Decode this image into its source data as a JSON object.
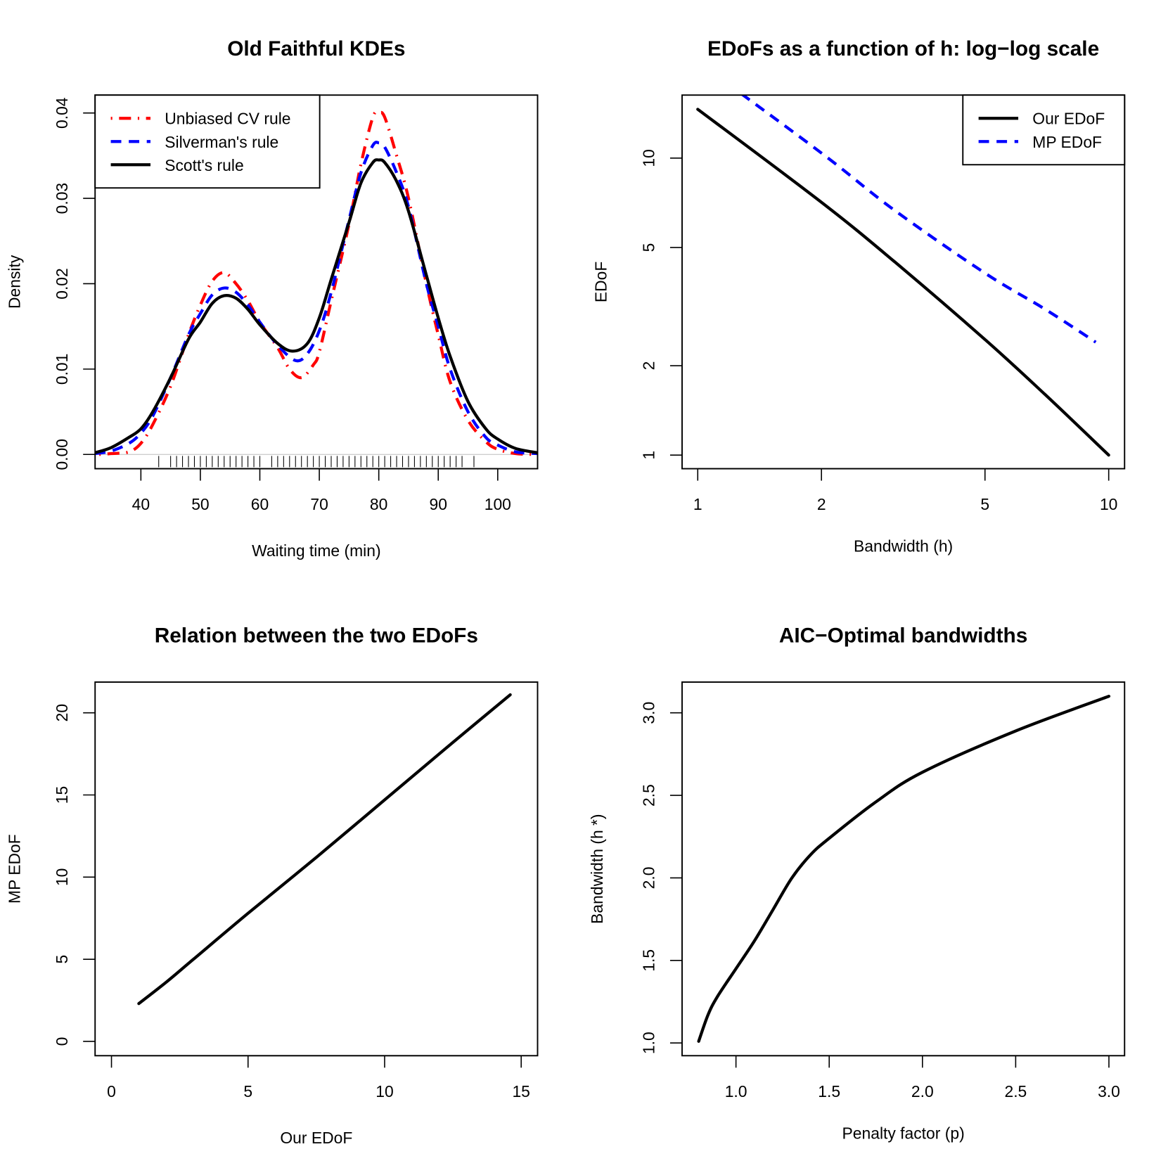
{
  "chart_data": [
    {
      "type": "line",
      "title": "Old Faithful KDEs",
      "xlabel": "Waiting time (min)",
      "ylabel": "Density",
      "xlim": [
        32.3,
        106.7
      ],
      "ylim": [
        -0.00167,
        0.0421
      ],
      "xscale": "linear",
      "yscale": "linear",
      "xticks": [
        40,
        50,
        60,
        70,
        80,
        90,
        100
      ],
      "xtick_labels": [
        "40",
        "50",
        "60",
        "70",
        "80",
        "90",
        "100"
      ],
      "yticks": [
        0,
        0.01,
        0.02,
        0.03,
        0.04
      ],
      "ytick_labels": [
        "0.00",
        "0.01",
        "0.02",
        "0.03",
        "0.04"
      ],
      "grid": false,
      "zero_line": true,
      "legend": "top-left",
      "rug": [
        43,
        45,
        46,
        47,
        48,
        49,
        50,
        51,
        52,
        53,
        54,
        55,
        56,
        57,
        58,
        59,
        60,
        62,
        63,
        64,
        65,
        66,
        67,
        68,
        69,
        70,
        71,
        72,
        73,
        74,
        75,
        76,
        77,
        78,
        79,
        80,
        81,
        82,
        83,
        84,
        85,
        86,
        87,
        88,
        89,
        90,
        91,
        92,
        93,
        94,
        96
      ],
      "series": [
        {
          "name": "Unbiased CV rule",
          "color": "#ff0000",
          "style": "dotdash",
          "x": [
            33,
            35,
            38,
            40,
            42,
            45,
            48,
            50,
            52,
            54,
            56,
            58,
            60,
            63,
            65,
            67,
            69,
            70,
            72,
            75,
            77,
            79,
            80,
            81,
            83,
            85,
            88,
            90,
            92,
            95,
            98,
            100,
            103,
            106.7
          ],
          "y": [
            0.0,
            0.0001,
            0.0003,
            0.0013,
            0.0035,
            0.008,
            0.014,
            0.0175,
            0.0203,
            0.0213,
            0.02,
            0.018,
            0.0155,
            0.0125,
            0.01,
            0.009,
            0.0105,
            0.012,
            0.018,
            0.027,
            0.034,
            0.0395,
            0.04,
            0.0395,
            0.035,
            0.03,
            0.02,
            0.014,
            0.0085,
            0.004,
            0.0015,
            0.0006,
            0.0001,
            0.0
          ]
        },
        {
          "name": "Silverman's rule",
          "color": "#0000ff",
          "style": "dashed",
          "x": [
            32.3,
            35,
            38,
            40,
            42,
            45,
            48,
            50,
            52,
            54,
            56,
            58,
            60,
            63,
            66,
            68,
            70,
            72,
            75,
            77,
            79,
            80,
            81,
            83,
            85,
            88,
            90,
            92,
            95,
            98,
            100,
            103,
            106.7
          ],
          "y": [
            0.0001,
            0.0004,
            0.0013,
            0.0025,
            0.0045,
            0.009,
            0.014,
            0.0165,
            0.0187,
            0.0195,
            0.019,
            0.0175,
            0.0155,
            0.0128,
            0.011,
            0.0118,
            0.0145,
            0.019,
            0.0275,
            0.033,
            0.0362,
            0.0365,
            0.036,
            0.033,
            0.029,
            0.02,
            0.015,
            0.01,
            0.005,
            0.002,
            0.0011,
            0.0003,
            0.0001
          ]
        },
        {
          "name": "Scott's rule",
          "color": "#000000",
          "style": "solid",
          "x": [
            32.3,
            35,
            38,
            40,
            42,
            45,
            48,
            50,
            52,
            54,
            56,
            58,
            60,
            63,
            65.5,
            68,
            70,
            72,
            75,
            77,
            79,
            80,
            81,
            83,
            85,
            88,
            90,
            92,
            95,
            98,
            100,
            103,
            106.7
          ],
          "y": [
            0.0002,
            0.0008,
            0.002,
            0.003,
            0.005,
            0.009,
            0.0135,
            0.0155,
            0.0177,
            0.0186,
            0.0183,
            0.017,
            0.0152,
            0.013,
            0.0121,
            0.013,
            0.016,
            0.0205,
            0.0272,
            0.0318,
            0.0342,
            0.0345,
            0.0342,
            0.032,
            0.0285,
            0.021,
            0.016,
            0.0115,
            0.0062,
            0.003,
            0.0018,
            0.0007,
            0.0002
          ]
        }
      ]
    },
    {
      "type": "line",
      "title": "EDoFs as a function of h: log−log scale",
      "xlabel": "Bandwidth (h)",
      "ylabel": "EDoF",
      "xlim": [
        0.916,
        10.93
      ],
      "ylim": [
        0.9,
        16.3
      ],
      "xscale": "log",
      "yscale": "log",
      "xticks": [
        1,
        2,
        5,
        10
      ],
      "xtick_labels": [
        "1",
        "2",
        "5",
        "10"
      ],
      "yticks": [
        1,
        2,
        5,
        10
      ],
      "ytick_labels": [
        "1",
        "2",
        "5",
        "10"
      ],
      "grid": false,
      "legend": "top-right",
      "series": [
        {
          "name": "Our EDoF",
          "color": "#000000",
          "style": "solid",
          "x": [
            1,
            2,
            3,
            5,
            7,
            10
          ],
          "y": [
            14.6,
            7.1,
            4.5,
            2.45,
            1.6,
            1.0
          ]
        },
        {
          "name": "MP EDoF",
          "color": "#0000ff",
          "style": "dashed",
          "x": [
            1,
            2,
            3,
            5,
            7,
            9.3
          ],
          "y": [
            21.1,
            10.4,
            6.7,
            4.1,
            3.1,
            2.4
          ]
        }
      ]
    },
    {
      "type": "line",
      "title": "Relation between the two EDoFs",
      "xlabel": "Our EDoF",
      "ylabel": "MP EDoF",
      "xlim": [
        -0.6,
        15.6
      ],
      "ylim": [
        -0.87,
        21.87
      ],
      "xscale": "linear",
      "yscale": "linear",
      "xticks": [
        0,
        5,
        10,
        15
      ],
      "xtick_labels": [
        "0",
        "5",
        "10",
        "15"
      ],
      "yticks": [
        0,
        5,
        10,
        15,
        20
      ],
      "ytick_labels": [
        "0",
        "5",
        "10",
        "15",
        "20"
      ],
      "grid": false,
      "series": [
        {
          "color": "#000000",
          "style": "solid",
          "x": [
            1,
            2,
            3,
            5,
            7.5,
            10,
            12.5,
            14.6
          ],
          "y": [
            2.3,
            3.6,
            5.0,
            7.8,
            11.2,
            14.7,
            18.2,
            21.1
          ]
        }
      ]
    },
    {
      "type": "line",
      "title": "AIC−Optimal bandwidths",
      "xlabel": "Penalty factor (p)",
      "ylabel": "Bandwidth (h *)",
      "xlim": [
        0.711,
        3.084
      ],
      "ylim": [
        0.923,
        3.186
      ],
      "xscale": "linear",
      "yscale": "linear",
      "xticks": [
        1.0,
        1.5,
        2.0,
        2.5,
        3.0
      ],
      "xtick_labels": [
        "1.0",
        "1.5",
        "2.0",
        "2.5",
        "3.0"
      ],
      "yticks": [
        1.0,
        1.5,
        2.0,
        2.5,
        3.0
      ],
      "ytick_labels": [
        "1.0",
        "1.5",
        "2.0",
        "2.5",
        "3.0"
      ],
      "grid": false,
      "series": [
        {
          "color": "#000000",
          "style": "solid",
          "x": [
            0.8,
            0.85,
            0.9,
            1.0,
            1.1,
            1.2,
            1.3,
            1.4,
            1.5,
            1.75,
            2.0,
            2.5,
            3.0
          ],
          "y": [
            1.01,
            1.17,
            1.28,
            1.45,
            1.62,
            1.81,
            2.0,
            2.14,
            2.24,
            2.46,
            2.64,
            2.89,
            3.1
          ]
        }
      ]
    }
  ]
}
